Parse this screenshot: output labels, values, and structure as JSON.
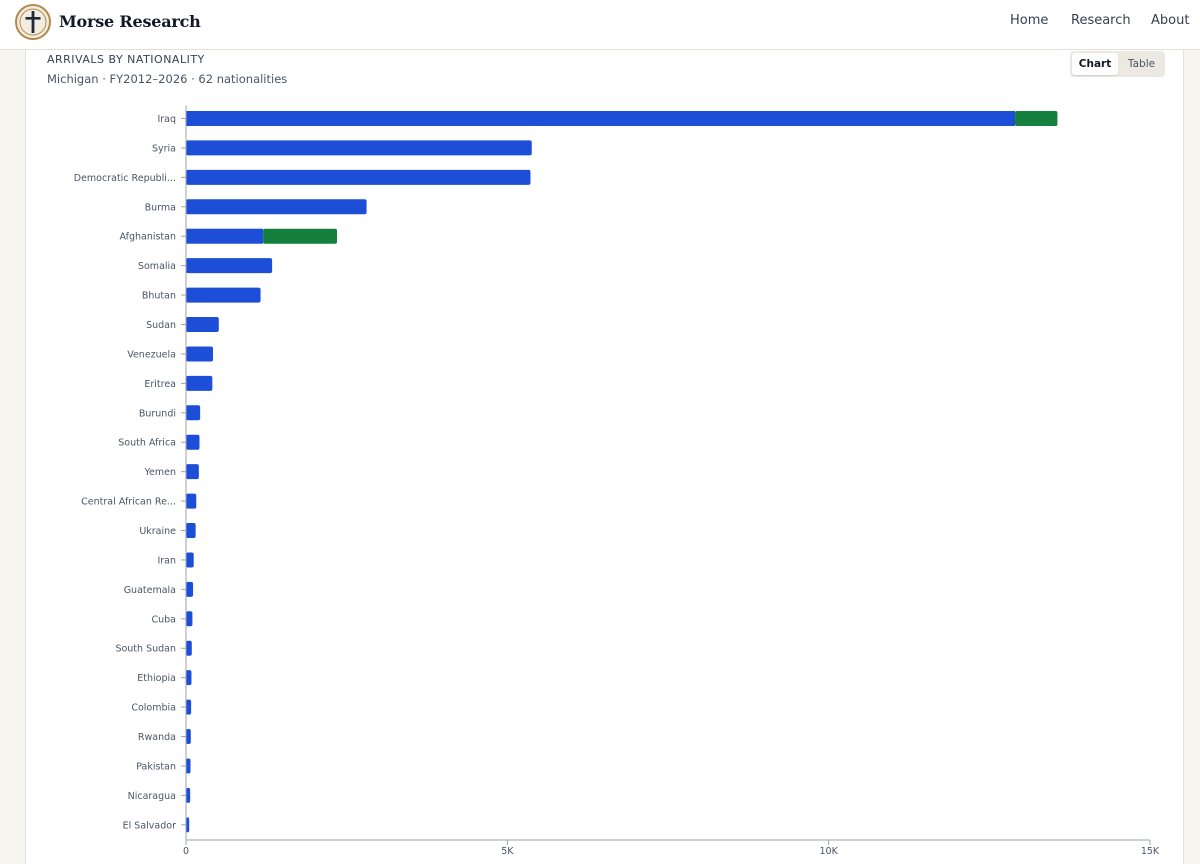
{
  "site": {
    "brand": "Morse Research",
    "nav": [
      "Home",
      "Research",
      "About"
    ]
  },
  "view_toggle": {
    "options": [
      "Chart",
      "Table"
    ],
    "selected": "Chart"
  },
  "chart_header": {
    "title": "ARRIVALS BY NATIONALITY",
    "subtitle": "Michigan · FY2012–2026 · 62 nationalities"
  },
  "colors": {
    "primary_series": "#1d4ed8",
    "secondary_series": "#15803d"
  },
  "chart_data": {
    "type": "bar",
    "orientation": "horizontal",
    "stacked": true,
    "categories": [
      "Iraq",
      "Syria",
      "Democratic Republi...",
      "Burma",
      "Afghanistan",
      "Somalia",
      "Bhutan",
      "Sudan",
      "Venezuela",
      "Eritrea",
      "Burundi",
      "South Africa",
      "Yemen",
      "Central African Re...",
      "Ukraine",
      "Iran",
      "Guatemala",
      "Cuba",
      "South Sudan",
      "Ethiopia",
      "Colombia",
      "Rwanda",
      "Pakistan",
      "Nicaragua",
      "El Salvador"
    ],
    "series": [
      {
        "color": "#1d4ed8",
        "values": [
          12900,
          5380,
          5360,
          2810,
          1200,
          1340,
          1160,
          510,
          420,
          410,
          220,
          210,
          200,
          160,
          150,
          120,
          110,
          100,
          90,
          85,
          80,
          75,
          70,
          65,
          50
        ]
      },
      {
        "color": "#15803d",
        "values": [
          660,
          0,
          0,
          0,
          1150,
          0,
          0,
          0,
          0,
          0,
          0,
          0,
          0,
          0,
          0,
          0,
          0,
          0,
          0,
          0,
          0,
          0,
          0,
          0,
          0
        ]
      }
    ],
    "xlim": [
      0,
      15000
    ],
    "xticks": [
      0,
      5000,
      10000,
      15000
    ],
    "xtick_labels": [
      "0",
      "5K",
      "10K",
      "15K"
    ],
    "grid": false,
    "legend": "none"
  }
}
